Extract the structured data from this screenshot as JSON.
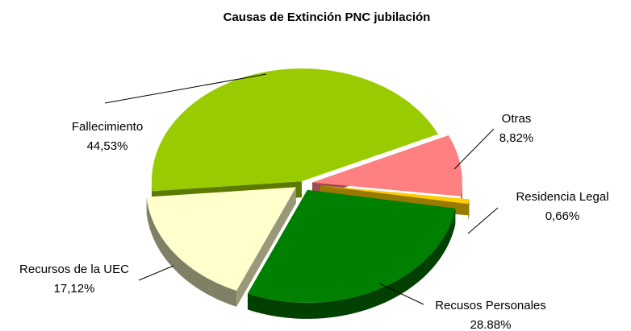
{
  "chart_data": {
    "type": "pie3d",
    "title": "Causas de Extinción PNC jubilación",
    "categories": [
      "Fallecimiento",
      "Otras",
      "Residencia Legal",
      "Recusos Personales",
      "Recursos de la UEC"
    ],
    "values": [
      44.53,
      8.82,
      0.66,
      28.88,
      17.12
    ],
    "value_labels": [
      "44,53%",
      "8,82%",
      "0,66%",
      "28.88%",
      "17,12%"
    ],
    "colors": [
      "#99cc00",
      "#ff8080",
      "#ffcc00",
      "#008000",
      "#ffffcc"
    ]
  }
}
